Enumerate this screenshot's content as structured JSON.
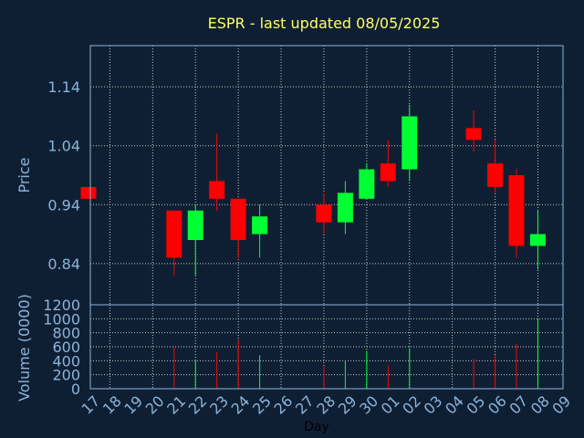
{
  "chart_data": [
    {
      "type": "candlestick",
      "title": "ESPR - last updated 08/05/2025",
      "ylabel": "Price",
      "ylim": [
        0.77,
        1.21
      ],
      "yticks": [
        0.84,
        0.94,
        1.04,
        1.14
      ],
      "ytick_labels": [
        "0.84",
        "0.94",
        "1.04",
        "1.14"
      ],
      "grid": true,
      "colors": {
        "up": "#00ff33",
        "down": "#ff0000",
        "background": "#0f1f33",
        "text": "#ffff66",
        "axis_text": "#8cb4d9",
        "grid": "#c8c8c8"
      },
      "x": [
        "17",
        "18",
        "19",
        "20",
        "21",
        "22",
        "23",
        "24",
        "25",
        "26",
        "27",
        "28",
        "29",
        "30",
        "01",
        "02",
        "03",
        "04",
        "05",
        "06",
        "07",
        "08",
        "09"
      ],
      "candles": [
        {
          "x": "17",
          "open": 0.97,
          "close": 0.95,
          "high": 0.97,
          "low": 0.95
        },
        {
          "x": "21",
          "open": 0.93,
          "close": 0.85,
          "high": 0.93,
          "low": 0.82
        },
        {
          "x": "22",
          "open": 0.88,
          "close": 0.93,
          "high": 0.94,
          "low": 0.82
        },
        {
          "x": "23",
          "open": 0.98,
          "close": 0.95,
          "high": 1.06,
          "low": 0.93
        },
        {
          "x": "24",
          "open": 0.95,
          "close": 0.88,
          "high": 0.95,
          "low": 0.85
        },
        {
          "x": "25",
          "open": 0.89,
          "close": 0.92,
          "high": 0.94,
          "low": 0.85
        },
        {
          "x": "28",
          "open": 0.94,
          "close": 0.91,
          "high": 0.96,
          "low": 0.89
        },
        {
          "x": "29",
          "open": 0.91,
          "close": 0.96,
          "high": 0.98,
          "low": 0.89
        },
        {
          "x": "30",
          "open": 0.95,
          "close": 1.0,
          "high": 1.01,
          "low": 0.95
        },
        {
          "x": "01",
          "open": 1.01,
          "close": 0.98,
          "high": 1.05,
          "low": 0.97
        },
        {
          "x": "02",
          "open": 1.0,
          "close": 1.09,
          "high": 1.11,
          "low": 0.98
        },
        {
          "x": "05",
          "open": 1.07,
          "close": 1.05,
          "high": 1.1,
          "low": 1.03
        },
        {
          "x": "06",
          "open": 1.01,
          "close": 0.97,
          "high": 1.05,
          "low": 0.96
        },
        {
          "x": "07",
          "open": 0.99,
          "close": 0.87,
          "high": 1.0,
          "low": 0.85
        },
        {
          "x": "08",
          "open": 0.87,
          "close": 0.89,
          "high": 0.93,
          "low": 0.83
        }
      ]
    },
    {
      "type": "bar",
      "xlabel": "Day",
      "ylabel": "Volume (0000)",
      "ylim": [
        0,
        1200
      ],
      "yticks": [
        0,
        200,
        400,
        600,
        800,
        1000,
        1200
      ],
      "ytick_labels": [
        "0",
        "200",
        "400",
        "600",
        "800",
        "1000",
        "1200"
      ],
      "categories": [
        "17",
        "18",
        "19",
        "20",
        "21",
        "22",
        "23",
        "24",
        "25",
        "26",
        "27",
        "28",
        "29",
        "30",
        "01",
        "02",
        "03",
        "04",
        "05",
        "06",
        "07",
        "08",
        "09"
      ],
      "bars": [
        {
          "x": "21",
          "value": 600,
          "direction": "down"
        },
        {
          "x": "22",
          "value": 400,
          "direction": "up"
        },
        {
          "x": "23",
          "value": 520,
          "direction": "down"
        },
        {
          "x": "24",
          "value": 700,
          "direction": "down"
        },
        {
          "x": "25",
          "value": 480,
          "direction": "up"
        },
        {
          "x": "28",
          "value": 320,
          "direction": "down"
        },
        {
          "x": "29",
          "value": 400,
          "direction": "up"
        },
        {
          "x": "30",
          "value": 540,
          "direction": "up"
        },
        {
          "x": "01",
          "value": 330,
          "direction": "down"
        },
        {
          "x": "02",
          "value": 580,
          "direction": "up"
        },
        {
          "x": "05",
          "value": 430,
          "direction": "down"
        },
        {
          "x": "06",
          "value": 480,
          "direction": "down"
        },
        {
          "x": "07",
          "value": 640,
          "direction": "down"
        },
        {
          "x": "08",
          "value": 1000,
          "direction": "up"
        }
      ]
    }
  ]
}
